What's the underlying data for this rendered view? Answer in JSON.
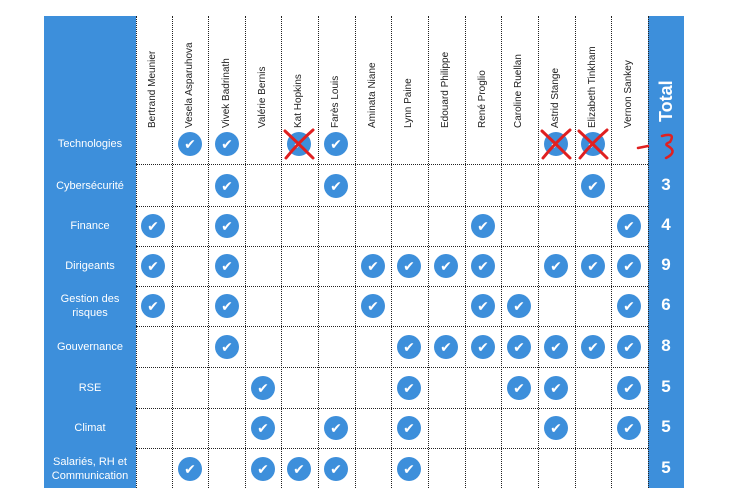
{
  "members": [
    "Bertrand Meunier",
    "Vesela Asparuhova",
    "Vivek Badrinath",
    "Valérie Bernis",
    "Kat Hopkins",
    "Farès Louis",
    "Aminata Niane",
    "Lynn Paine",
    "Edouard Philippe",
    "René Proglio",
    "Caroline Ruellan",
    "Astrid Stange",
    "Elizabeth Tinkham",
    "Vernon Sankey"
  ],
  "total_header": "Total",
  "check_glyph": "✔",
  "colors": {
    "accent": "#3d8fdb",
    "strike": "#e02020"
  },
  "rows": [
    {
      "label": "Technologies",
      "total": "",
      "checks": [
        1,
        2,
        4,
        5,
        11,
        12
      ],
      "struck": [
        4,
        11,
        12
      ],
      "total_scribble": true
    },
    {
      "label": "Cybersécurité",
      "total": "3",
      "checks": [
        2,
        5,
        12
      ],
      "struck": []
    },
    {
      "label": "Finance",
      "total": "4",
      "checks": [
        0,
        2,
        9,
        13
      ],
      "struck": []
    },
    {
      "label": "Dirigeants",
      "total": "9",
      "checks": [
        0,
        2,
        6,
        7,
        8,
        9,
        11,
        12,
        13
      ],
      "struck": []
    },
    {
      "label": "Gestion des\nrisques",
      "total": "6",
      "checks": [
        0,
        2,
        6,
        9,
        10,
        13
      ],
      "struck": []
    },
    {
      "label": "Gouvernance",
      "total": "8",
      "checks": [
        2,
        7,
        8,
        9,
        10,
        11,
        12,
        13
      ],
      "struck": []
    },
    {
      "label": "RSE",
      "total": "5",
      "checks": [
        3,
        7,
        10,
        11,
        13
      ],
      "struck": []
    },
    {
      "label": "Climat",
      "total": "5",
      "checks": [
        3,
        5,
        7,
        11,
        13
      ],
      "struck": []
    },
    {
      "label": "Salariés, RH et\nCommunication",
      "total": "5",
      "checks": [
        1,
        3,
        4,
        5,
        7
      ],
      "struck": []
    }
  ]
}
